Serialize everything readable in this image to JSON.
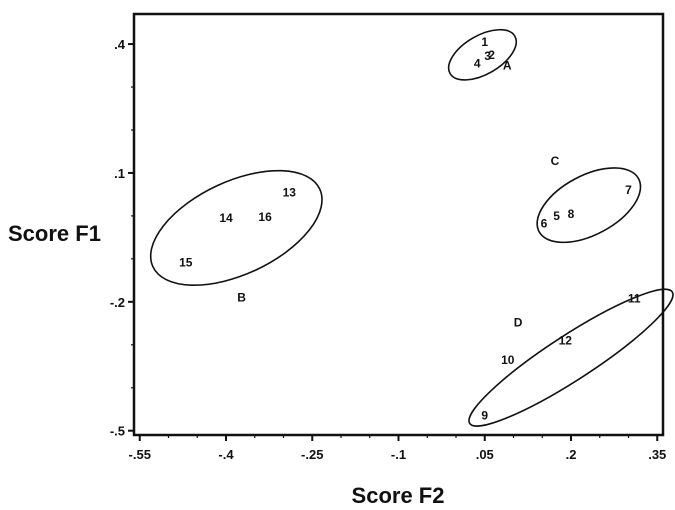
{
  "chart_data": {
    "type": "scatter",
    "title": "",
    "xlabel": "Score F2",
    "ylabel": "Score F1",
    "xlim": [
      -0.56,
      0.36
    ],
    "ylim": [
      -0.51,
      0.47
    ],
    "x_ticks": [
      {
        "value": -0.55,
        "label": "-.55"
      },
      {
        "value": -0.4,
        "label": "-.4"
      },
      {
        "value": -0.25,
        "label": "-.25"
      },
      {
        "value": -0.1,
        "label": "-.1"
      },
      {
        "value": 0.05,
        "label": ".05"
      },
      {
        "value": 0.2,
        "label": ".2"
      },
      {
        "value": 0.35,
        "label": ".35"
      }
    ],
    "y_ticks": [
      {
        "value": 0.4,
        "label": ".4"
      },
      {
        "value": 0.1,
        "label": ".1"
      },
      {
        "value": -0.2,
        "label": "-.2"
      },
      {
        "value": -0.5,
        "label": "-.5"
      }
    ],
    "grid": false,
    "points": [
      {
        "label": "1",
        "x": 0.05,
        "y": 0.405
      },
      {
        "label": "2",
        "x": 0.062,
        "y": 0.375
      },
      {
        "label": "3",
        "x": 0.055,
        "y": 0.372
      },
      {
        "label": "4",
        "x": 0.037,
        "y": 0.355
      },
      {
        "label": "5",
        "x": 0.175,
        "y": 0.0
      },
      {
        "label": "6",
        "x": 0.153,
        "y": -0.018
      },
      {
        "label": "7",
        "x": 0.3,
        "y": 0.06
      },
      {
        "label": "8",
        "x": 0.2,
        "y": 0.004
      },
      {
        "label": "9",
        "x": 0.05,
        "y": -0.465
      },
      {
        "label": "10",
        "x": 0.09,
        "y": -0.335
      },
      {
        "label": "11",
        "x": 0.31,
        "y": -0.192
      },
      {
        "label": "12",
        "x": 0.19,
        "y": -0.29
      },
      {
        "label": "13",
        "x": -0.29,
        "y": 0.055
      },
      {
        "label": "14",
        "x": -0.4,
        "y": -0.005
      },
      {
        "label": "15",
        "x": -0.47,
        "y": -0.108
      },
      {
        "label": "16",
        "x": -0.332,
        "y": -0.003
      }
    ],
    "groups": [
      {
        "label": "A",
        "x": 0.089,
        "y": 0.35,
        "members": [
          "1",
          "2",
          "3",
          "4"
        ],
        "ellipse": {
          "cx": 0.046,
          "cy": 0.375,
          "rx": 0.065,
          "ry": 0.045,
          "rotate": -30
        }
      },
      {
        "label": "C",
        "x": 0.172,
        "y": 0.128,
        "members": [
          "5",
          "6",
          "7",
          "8"
        ],
        "ellipse": {
          "cx": 0.231,
          "cy": 0.025,
          "rx": 0.098,
          "ry": 0.069,
          "rotate": -28
        }
      },
      {
        "label": "D",
        "x": 0.108,
        "y": -0.248,
        "members": [
          "9",
          "10",
          "11",
          "12"
        ],
        "ellipse": {
          "cx": 0.2,
          "cy": -0.33,
          "rx": 0.21,
          "ry": 0.052,
          "rotate": -33
        }
      },
      {
        "label": "B",
        "x": -0.373,
        "y": -0.19,
        "members": [
          "13",
          "14",
          "15",
          "16"
        ],
        "ellipse": {
          "cx": -0.382,
          "cy": -0.028,
          "rx": 0.16,
          "ry": 0.108,
          "rotate": -25
        }
      }
    ]
  }
}
